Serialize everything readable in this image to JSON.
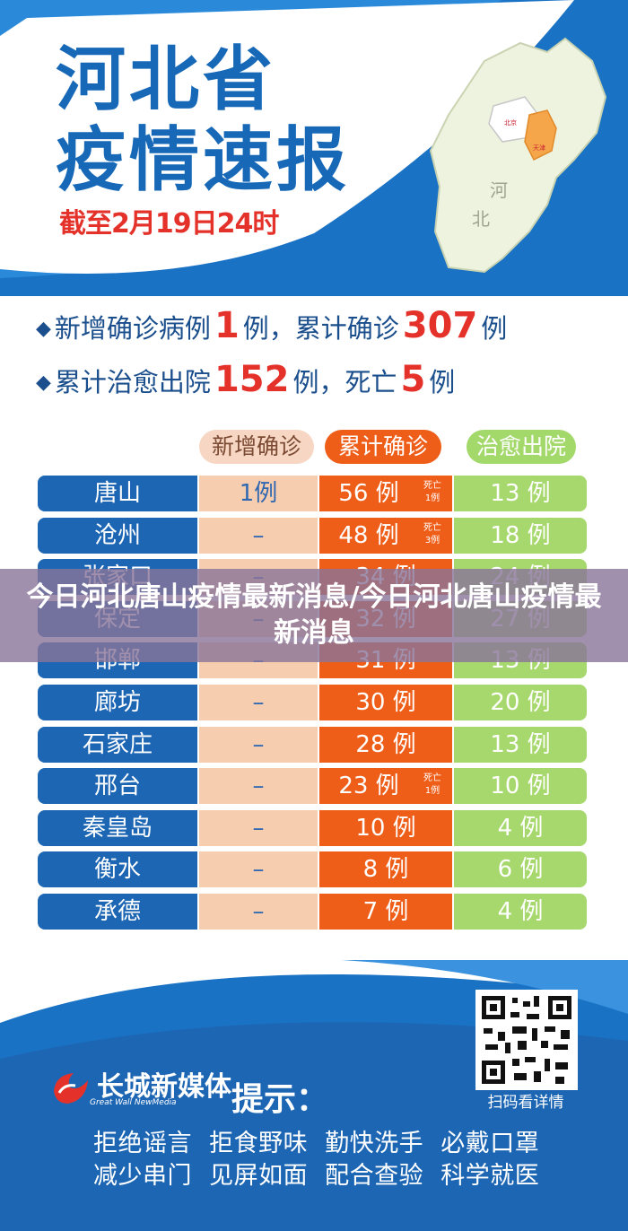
{
  "header": {
    "title_line1": "河北省",
    "title_line2": "疫情速报",
    "date": "截至2月19日24时"
  },
  "map": {
    "label_he": "河",
    "label_bei": "北",
    "label_beijing": "北京",
    "label_tianjin": "天津"
  },
  "summary": {
    "line1_a": "新增确诊病例",
    "line1_new": "1",
    "line1_b": "例，累计确诊",
    "line1_total": "307",
    "line1_c": "例",
    "line2_a": "累计治愈出院",
    "line2_cured": "152",
    "line2_b": "例，死亡",
    "line2_deaths": "5",
    "line2_c": "例"
  },
  "table": {
    "headers": {
      "new": "新增确诊",
      "total": "累计确诊",
      "cured": "治愈出院"
    },
    "rows": [
      {
        "city": "唐山",
        "new": "1例",
        "total": "56 例",
        "death": [
          "死亡",
          "1例"
        ],
        "cured": "13 例"
      },
      {
        "city": "沧州",
        "new": "–",
        "total": "48 例",
        "death": [
          "死亡",
          "3例"
        ],
        "cured": "18 例"
      },
      {
        "city": "张家口",
        "new": "–",
        "total": "34 例",
        "death": null,
        "cured": "24 例"
      },
      {
        "city": "保定",
        "new": "–",
        "total": "32 例",
        "death": null,
        "cured": "27 例"
      },
      {
        "city": "邯郸",
        "new": "–",
        "total": "31 例",
        "death": null,
        "cured": "13 例"
      },
      {
        "city": "廊坊",
        "new": "–",
        "total": "30 例",
        "death": null,
        "cured": "20 例"
      },
      {
        "city": "石家庄",
        "new": "–",
        "total": "28 例",
        "death": null,
        "cured": "13 例"
      },
      {
        "city": "邢台",
        "new": "–",
        "total": "23 例",
        "death": [
          "死亡",
          "1例"
        ],
        "cured": "10 例"
      },
      {
        "city": "秦皇岛",
        "new": "–",
        "total": "10 例",
        "death": null,
        "cured": "4 例"
      },
      {
        "city": "衡水",
        "new": "–",
        "total": "8 例",
        "death": null,
        "cured": "6 例"
      },
      {
        "city": "承德",
        "new": "–",
        "total": "7 例",
        "death": null,
        "cured": "4 例"
      }
    ]
  },
  "overlay": {
    "text": "今日河北唐山疫情最新消息/今日河北唐山疫情最新消息"
  },
  "footer": {
    "brand": "长城新媒体",
    "brand_en": "Great Wall NewMedia",
    "tip": "提示：",
    "qr_caption": "扫码看详情",
    "slogan1": "拒绝谣言 拒食野味 勤快洗手 必戴口罩",
    "slogan2": "减少串门 见屏如面 配合查验 科学就医"
  },
  "colors": {
    "brand_blue": "#1769b8",
    "accent_red": "#e4322b",
    "total_orange": "#ee5e19",
    "cured_green": "#a7d86d"
  }
}
